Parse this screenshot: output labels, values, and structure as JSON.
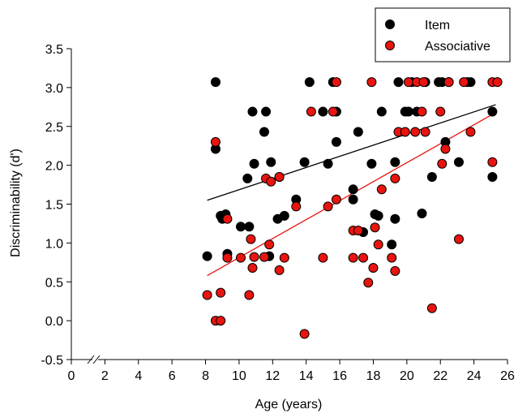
{
  "chart_data": {
    "type": "scatter",
    "xlabel": "Age (years)",
    "ylabel": "Discriminability (d')",
    "xlim": [
      0,
      26
    ],
    "ylim": [
      -0.5,
      3.5
    ],
    "x_ticks": [
      "0",
      "2",
      "4",
      "6",
      "8",
      "10",
      "12",
      "14",
      "16",
      "18",
      "20",
      "22",
      "24",
      "26"
    ],
    "y_ticks": [
      "-0.5",
      "0.0",
      "0.5",
      "1.0",
      "1.5",
      "2.0",
      "2.5",
      "3.0",
      "3.5"
    ],
    "x_axis_break": true,
    "grid": false,
    "legend_position": "top-right",
    "series": [
      {
        "name": "Item",
        "color": "#000000",
        "points": [
          [
            8.1,
            0.83
          ],
          [
            8.6,
            3.07
          ],
          [
            8.6,
            2.21
          ],
          [
            8.9,
            1.35
          ],
          [
            9.0,
            1.31
          ],
          [
            9.2,
            1.37
          ],
          [
            9.3,
            0.86
          ],
          [
            10.1,
            1.21
          ],
          [
            10.5,
            1.83
          ],
          [
            10.6,
            1.21
          ],
          [
            10.8,
            2.69
          ],
          [
            10.9,
            2.02
          ],
          [
            11.5,
            2.43
          ],
          [
            11.6,
            2.69
          ],
          [
            11.8,
            0.83
          ],
          [
            11.9,
            2.04
          ],
          [
            12.3,
            1.31
          ],
          [
            12.4,
            1.85
          ],
          [
            12.7,
            1.35
          ],
          [
            13.4,
            1.56
          ],
          [
            13.9,
            2.04
          ],
          [
            14.2,
            3.07
          ],
          [
            15.0,
            2.69
          ],
          [
            15.3,
            2.02
          ],
          [
            15.6,
            3.07
          ],
          [
            15.8,
            2.69
          ],
          [
            15.8,
            2.3
          ],
          [
            16.8,
            1.69
          ],
          [
            16.8,
            1.56
          ],
          [
            17.1,
            2.43
          ],
          [
            17.4,
            1.14
          ],
          [
            17.9,
            2.02
          ],
          [
            18.1,
            1.37
          ],
          [
            18.3,
            1.35
          ],
          [
            18.5,
            2.69
          ],
          [
            19.1,
            0.98
          ],
          [
            19.3,
            1.31
          ],
          [
            19.3,
            2.04
          ],
          [
            19.5,
            3.07
          ],
          [
            19.9,
            2.69
          ],
          [
            20.1,
            2.69
          ],
          [
            20.3,
            3.07
          ],
          [
            20.6,
            2.69
          ],
          [
            20.9,
            1.38
          ],
          [
            21.1,
            3.07
          ],
          [
            21.5,
            1.85
          ],
          [
            21.9,
            3.07
          ],
          [
            22.1,
            3.07
          ],
          [
            22.3,
            2.3
          ],
          [
            22.5,
            3.07
          ],
          [
            23.1,
            2.04
          ],
          [
            23.6,
            3.07
          ],
          [
            23.8,
            3.07
          ],
          [
            25.1,
            2.69
          ],
          [
            25.1,
            1.85
          ]
        ],
        "fit": [
          [
            8.1,
            1.55
          ],
          [
            25.3,
            2.78
          ]
        ]
      },
      {
        "name": "Associative",
        "color": "#e8140f",
        "points": [
          [
            8.1,
            0.33
          ],
          [
            8.6,
            2.3
          ],
          [
            8.6,
            0.0
          ],
          [
            8.9,
            0.0
          ],
          [
            8.9,
            0.36
          ],
          [
            9.3,
            1.31
          ],
          [
            9.3,
            0.81
          ],
          [
            10.1,
            0.81
          ],
          [
            10.6,
            0.33
          ],
          [
            10.7,
            1.05
          ],
          [
            10.8,
            0.68
          ],
          [
            10.9,
            0.82
          ],
          [
            11.5,
            0.82
          ],
          [
            11.6,
            1.83
          ],
          [
            11.8,
            0.98
          ],
          [
            11.9,
            1.79
          ],
          [
            12.4,
            0.65
          ],
          [
            12.4,
            1.85
          ],
          [
            12.7,
            0.81
          ],
          [
            13.4,
            1.47
          ],
          [
            13.9,
            -0.17
          ],
          [
            14.3,
            2.69
          ],
          [
            15.0,
            0.81
          ],
          [
            15.3,
            1.47
          ],
          [
            15.6,
            2.69
          ],
          [
            15.8,
            1.56
          ],
          [
            15.8,
            3.07
          ],
          [
            16.8,
            0.81
          ],
          [
            16.8,
            1.16
          ],
          [
            17.1,
            1.16
          ],
          [
            17.4,
            0.81
          ],
          [
            17.7,
            0.49
          ],
          [
            17.9,
            3.07
          ],
          [
            18.0,
            0.68
          ],
          [
            18.1,
            1.2
          ],
          [
            18.3,
            0.98
          ],
          [
            18.5,
            1.69
          ],
          [
            19.1,
            0.81
          ],
          [
            19.3,
            0.64
          ],
          [
            19.3,
            1.83
          ],
          [
            19.5,
            2.43
          ],
          [
            19.9,
            2.43
          ],
          [
            20.1,
            3.07
          ],
          [
            20.5,
            2.43
          ],
          [
            20.6,
            3.07
          ],
          [
            20.9,
            2.69
          ],
          [
            21.0,
            3.07
          ],
          [
            21.1,
            2.43
          ],
          [
            21.5,
            0.16
          ],
          [
            22.0,
            2.69
          ],
          [
            22.1,
            2.02
          ],
          [
            22.3,
            2.21
          ],
          [
            22.5,
            3.07
          ],
          [
            23.1,
            1.05
          ],
          [
            23.4,
            3.07
          ],
          [
            23.8,
            2.43
          ],
          [
            25.1,
            3.07
          ],
          [
            25.1,
            2.04
          ],
          [
            25.4,
            3.07
          ]
        ],
        "fit": [
          [
            8.1,
            0.58
          ],
          [
            25.3,
            2.68
          ]
        ]
      }
    ]
  }
}
